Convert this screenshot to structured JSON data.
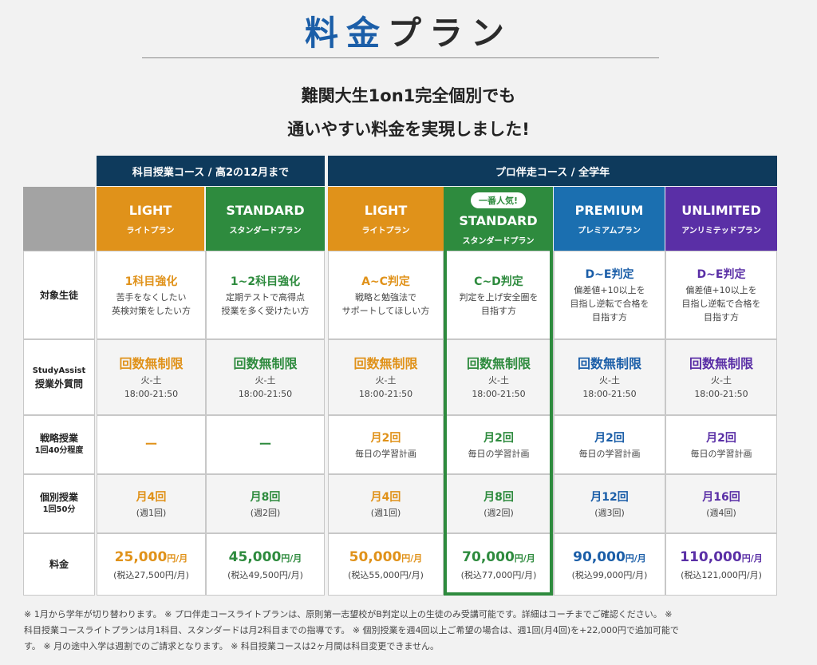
{
  "title": {
    "blue": "料金",
    "dark": "プラン"
  },
  "lead": [
    "難関大生1on1完全個別でも",
    "通いやすい料金を実現しました!"
  ],
  "courses": {
    "left": "科目授業コース / 高2の12月まで",
    "right": "プロ伴走コース / 全学年"
  },
  "plans": [
    {
      "en": "LIGHT",
      "jp": "ライトプラン",
      "color": "#e0921a"
    },
    {
      "en": "STANDARD",
      "jp": "スタンダードプラン",
      "color": "#2e8b3e"
    },
    {
      "en": "LIGHT",
      "jp": "ライトプラン",
      "color": "#e0921a"
    },
    {
      "en": "STANDARD",
      "jp": "スタンダードプラン",
      "color": "#2e8b3e",
      "badge": "一番人気!"
    },
    {
      "en": "PREMIUM",
      "jp": "プレミアムプラン",
      "color": "#1b6fb0"
    },
    {
      "en": "UNLIMITED",
      "jp": "アンリミテッドプラン",
      "color": "#5a2fa6"
    }
  ],
  "rows": {
    "target": {
      "label": "対象生徒"
    },
    "assist": {
      "label1": "StudyAssist",
      "label2": "授業外質問"
    },
    "strategy": {
      "label1": "戦略授業",
      "label2": "1回40分程度"
    },
    "individual": {
      "label1": "個別授業",
      "label2": "1回50分"
    },
    "price": {
      "label": "料金"
    }
  },
  "target": [
    {
      "head": "1科目強化",
      "l1": "苦手をなくしたい",
      "l2": "英検対策をしたい方",
      "l3": ""
    },
    {
      "head": "1~2科目強化",
      "l1": "定期テストで高得点",
      "l2": "授業を多く受けたい方",
      "l3": ""
    },
    {
      "head": "A~C判定",
      "l1": "戦略と勉強法で",
      "l2": "サポートしてほしい方",
      "l3": ""
    },
    {
      "head": "C~D判定",
      "l1": "判定を上げ安全圏を",
      "l2": "目指す方",
      "l3": ""
    },
    {
      "head": "D~E判定",
      "l1": "偏差値+10以上を",
      "l2": "目指し逆転で合格を",
      "l3": "目指す方"
    },
    {
      "head": "D~E判定",
      "l1": "偏差値+10以上を",
      "l2": "目指し逆転で合格を",
      "l3": "目指す方"
    }
  ],
  "assist": [
    {
      "head": "回数無制限",
      "days": "火-土",
      "time": "18:00-21:50"
    },
    {
      "head": "回数無制限",
      "days": "火-土",
      "time": "18:00-21:50"
    },
    {
      "head": "回数無制限",
      "days": "火-土",
      "time": "18:00-21:50"
    },
    {
      "head": "回数無制限",
      "days": "火-土",
      "time": "18:00-21:50"
    },
    {
      "head": "回数無制限",
      "days": "火-土",
      "time": "18:00-21:50"
    },
    {
      "head": "回数無制限",
      "days": "火-土",
      "time": "18:00-21:50"
    }
  ],
  "strategy": [
    {
      "head": "ー",
      "sub": ""
    },
    {
      "head": "ー",
      "sub": ""
    },
    {
      "head": "月2回",
      "sub": "毎日の学習計画"
    },
    {
      "head": "月2回",
      "sub": "毎日の学習計画"
    },
    {
      "head": "月2回",
      "sub": "毎日の学習計画"
    },
    {
      "head": "月2回",
      "sub": "毎日の学習計画"
    }
  ],
  "individual": [
    {
      "head": "月4回",
      "sub": "(週1回)"
    },
    {
      "head": "月8回",
      "sub": "(週2回)"
    },
    {
      "head": "月4回",
      "sub": "(週1回)"
    },
    {
      "head": "月8回",
      "sub": "(週2回)"
    },
    {
      "head": "月12回",
      "sub": "(週3回)"
    },
    {
      "head": "月16回",
      "sub": "(週4回)"
    }
  ],
  "price": [
    {
      "amount": "25,000",
      "unit": "円/月",
      "tax": "(税込27,500円/月)"
    },
    {
      "amount": "45,000",
      "unit": "円/月",
      "tax": "(税込49,500円/月)"
    },
    {
      "amount": "50,000",
      "unit": "円/月",
      "tax": "(税込55,000円/月)"
    },
    {
      "amount": "70,000",
      "unit": "円/月",
      "tax": "(税込77,000円/月)"
    },
    {
      "amount": "90,000",
      "unit": "円/月",
      "tax": "(税込99,000円/月)"
    },
    {
      "amount": "110,000",
      "unit": "円/月",
      "tax": "(税込121,000円/月)"
    }
  ],
  "notes": [
    "※ 1月から学年が切り替わります。 ※ プロ伴走コースライトプランは、原則第一志望校がB判定以上の生徒のみ受講可能です。詳細はコーチまでご確認ください。 ※",
    "科目授業コースライトプランは月1科目、スタンダードは月2科目までの指導です。 ※ 個別授業を週4回以上ご希望の場合は、週1回(月4回)を+22,000円で追加可能で",
    "す。 ※ 月の途中入学は週割でのご請求となります。 ※ 科目授業コースは2ヶ月間は科目変更できません。"
  ]
}
